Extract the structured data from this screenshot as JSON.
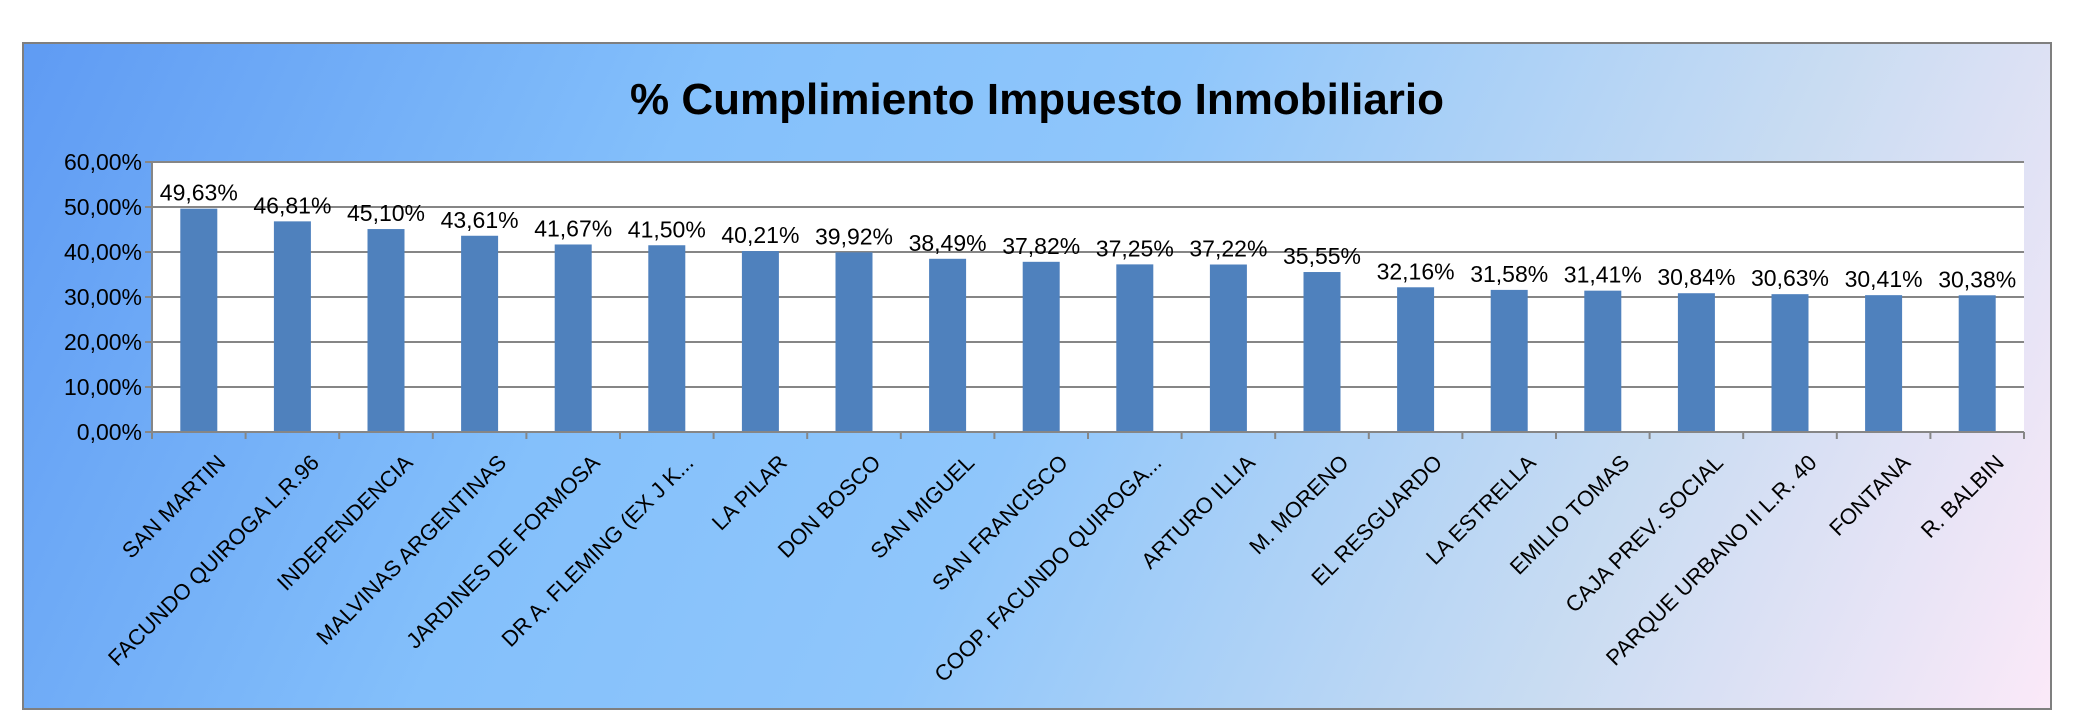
{
  "chart_data": {
    "type": "bar",
    "title": "% Cumplimiento Impuesto Inmobiliario",
    "xlabel": "",
    "ylabel": "",
    "ylim": [
      0,
      60
    ],
    "y_ticks": [
      "0,00%",
      "10,00%",
      "20,00%",
      "30,00%",
      "40,00%",
      "50,00%",
      "60,00%"
    ],
    "grid": true,
    "legend": "none",
    "bar_color": "#4f81bd",
    "categories": [
      "SAN MARTIN",
      "FACUNDO QUIROGA L.R.96",
      "INDEPENDENCIA",
      "MALVINAS ARGENTINAS",
      "JARDINES DE FORMOSA",
      "DR A. FLEMING (EX J K...",
      "LA PILAR",
      "DON BOSCO",
      "SAN MIGUEL",
      "SAN  FRANCISCO",
      "COOP. FACUNDO QUIROGA...",
      "ARTURO ILLIA",
      "M. MORENO",
      "EL RESGUARDO",
      "LA ESTRELLA",
      "EMILIO TOMAS",
      "CAJA PREV. SOCIAL",
      "PARQUE URBANO II L.R. 40",
      "FONTANA",
      "R. BALBIN"
    ],
    "values": [
      49.63,
      46.81,
      45.1,
      43.61,
      41.67,
      41.5,
      40.21,
      39.92,
      38.49,
      37.82,
      37.25,
      37.22,
      35.55,
      32.16,
      31.58,
      31.41,
      30.84,
      30.63,
      30.41,
      30.38
    ],
    "data_labels": [
      "49,63%",
      "46,81%",
      "45,10%",
      "43,61%",
      "41,67%",
      "41,50%",
      "40,21%",
      "39,92%",
      "38,49%",
      "37,82%",
      "37,25%",
      "37,22%",
      "35,55%",
      "32,16%",
      "31,58%",
      "31,41%",
      "30,84%",
      "30,63%",
      "30,41%",
      "30,38%"
    ]
  }
}
